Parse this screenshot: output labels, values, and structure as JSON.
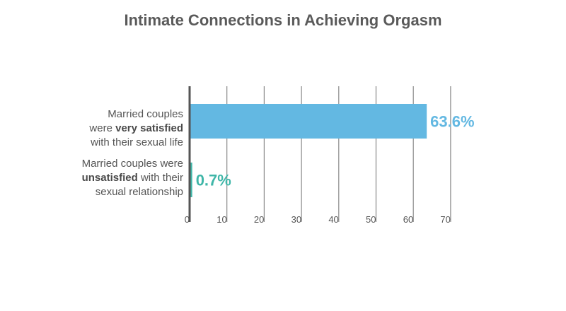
{
  "chart_data": {
    "type": "bar",
    "orientation": "horizontal",
    "title": "Intimate Connections in Achieving Orgasm",
    "categories": [
      {
        "parts": [
          {
            "text": "Married couples",
            "bold": false
          },
          {
            "text": "\n",
            "bold": false
          },
          {
            "text": "were ",
            "bold": false
          },
          {
            "text": "very satisfied",
            "bold": true
          },
          {
            "text": "\n",
            "bold": false
          },
          {
            "text": "with their sexual life",
            "bold": false
          }
        ]
      },
      {
        "parts": [
          {
            "text": "Married couples were",
            "bold": false
          },
          {
            "text": "\n",
            "bold": false
          },
          {
            "text": "unsatisfied",
            "bold": true
          },
          {
            "text": " with their",
            "bold": false
          },
          {
            "text": "\n",
            "bold": false
          },
          {
            "text": "sexual relationship",
            "bold": false
          }
        ]
      }
    ],
    "values": [
      63.6,
      0.7
    ],
    "value_labels": [
      "63.6%",
      "0.7%"
    ],
    "bar_colors": [
      "#63b8e2",
      "#3fb6a8"
    ],
    "xlim": [
      0,
      70
    ],
    "x_ticks": [
      "0",
      "10",
      "20",
      "30",
      "40",
      "50",
      "60",
      "70"
    ],
    "grid": true,
    "legend": "none"
  }
}
